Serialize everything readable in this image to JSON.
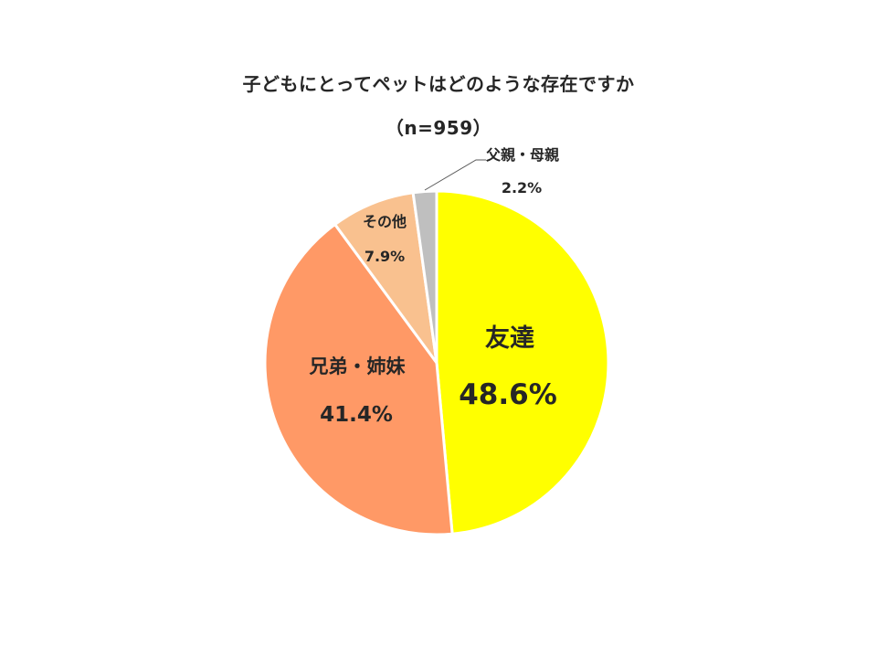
{
  "chart_data": {
    "type": "pie",
    "title": "子どもにとってペットはどのような存在ですか",
    "subtitle": "（n=959）",
    "start_angle_deg": 0,
    "direction": "clockwise",
    "slices": [
      {
        "label": "友達",
        "value": 48.6,
        "value_label": "48.6%",
        "color": "#FFFF00"
      },
      {
        "label": "兄弟・姉妹",
        "value": 41.4,
        "value_label": "41.4%",
        "color": "#FF9966"
      },
      {
        "label": "その他",
        "value": 7.9,
        "value_label": "7.9%",
        "color": "#F9C18F"
      },
      {
        "label": "父親・母親",
        "value": 2.2,
        "value_label": "2.2%",
        "color": "#BFBFBF"
      }
    ]
  }
}
